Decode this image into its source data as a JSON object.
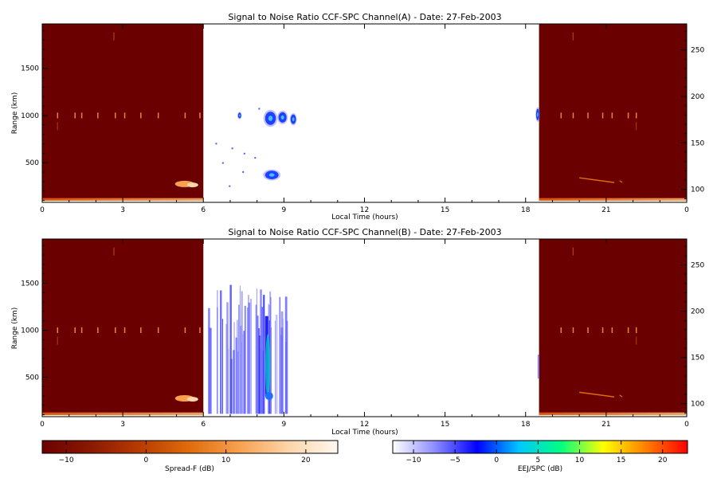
{
  "chart_data": [
    {
      "type": "heatmap",
      "title": "Signal to Noise Ratio CCF-SPC Channel(A) - Date: 27-Feb-2003",
      "xlabel": "Local Time (hours)",
      "ylabel": "Range (km)",
      "xlim": [
        0,
        24
      ],
      "ylim": [
        80,
        1970
      ],
      "xticks": [
        "0",
        "3",
        "6",
        "9",
        "12",
        "15",
        "18",
        "21",
        "0"
      ],
      "yticks": [
        500,
        1000,
        1500
      ],
      "y2ticks": [
        100,
        150,
        200,
        250
      ],
      "spread_f_blocks": [
        {
          "x_start": 0,
          "x_end": 6,
          "color": "#6b0000"
        },
        {
          "x_start": 18.5,
          "x_end": 24,
          "color": "#6b0000"
        }
      ],
      "ground_echo_ranges_km": [
        [
          90,
          125
        ],
        [
          260,
          300
        ]
      ],
      "bright_streaks_range_km": 1000,
      "eej_patches": [
        {
          "t": 7.35,
          "r": 1000,
          "w": 0.08,
          "h": 60
        },
        {
          "t": 8.5,
          "r": 970,
          "w": 0.4,
          "h": 140
        },
        {
          "t": 8.95,
          "r": 980,
          "w": 0.3,
          "h": 110
        },
        {
          "t": 9.35,
          "r": 960,
          "w": 0.2,
          "h": 100
        },
        {
          "t": 8.55,
          "r": 370,
          "w": 0.5,
          "h": 90
        },
        {
          "t": 18.45,
          "r": 1010,
          "w": 0.12,
          "h": 120
        }
      ]
    },
    {
      "type": "heatmap",
      "title": "Signal to Noise Ratio CCF-SPC Channel(B) - Date: 27-Feb-2003",
      "xlabel": "Local Time (hours)",
      "ylabel": "Range (km)",
      "xlim": [
        0,
        24
      ],
      "ylim": [
        80,
        1970
      ],
      "xticks": [
        "0",
        "3",
        "6",
        "9",
        "12",
        "15",
        "18",
        "21",
        "0"
      ],
      "yticks": [
        500,
        1000,
        1500
      ],
      "y2ticks": [
        100,
        150,
        200,
        250
      ],
      "spread_f_blocks": [
        {
          "x_start": 0,
          "x_end": 6,
          "color": "#6b0000"
        },
        {
          "x_start": 18.5,
          "x_end": 24,
          "color": "#6b0000"
        }
      ],
      "ground_echo_ranges_km": [
        [
          90,
          125
        ],
        [
          260,
          300
        ]
      ],
      "bright_streaks_range_km": 1000,
      "eej_region": {
        "x_start": 6.1,
        "x_end": 9.1,
        "r_low": 90,
        "r_high": 1520
      }
    },
    {
      "type": "colorbar",
      "label": "Spread-F (dB)",
      "ticks": [
        -10,
        0,
        10,
        20
      ],
      "range": [
        -13,
        24
      ],
      "colors": [
        "#6b0000",
        "#8b1a00",
        "#b83c00",
        "#e06d0c",
        "#f8a050",
        "#fcd5a8",
        "#fff8f0"
      ]
    },
    {
      "type": "colorbar",
      "label": "EEJ/SPC (dB)",
      "ticks": [
        -10,
        -5,
        0,
        5,
        10,
        15,
        20
      ],
      "range": [
        -12.5,
        23
      ],
      "colors": [
        "#ffffff",
        "#8c8cff",
        "#0000ff",
        "#00c8ff",
        "#00ff80",
        "#ffff00",
        "#ff8000",
        "#ff0000"
      ]
    }
  ]
}
